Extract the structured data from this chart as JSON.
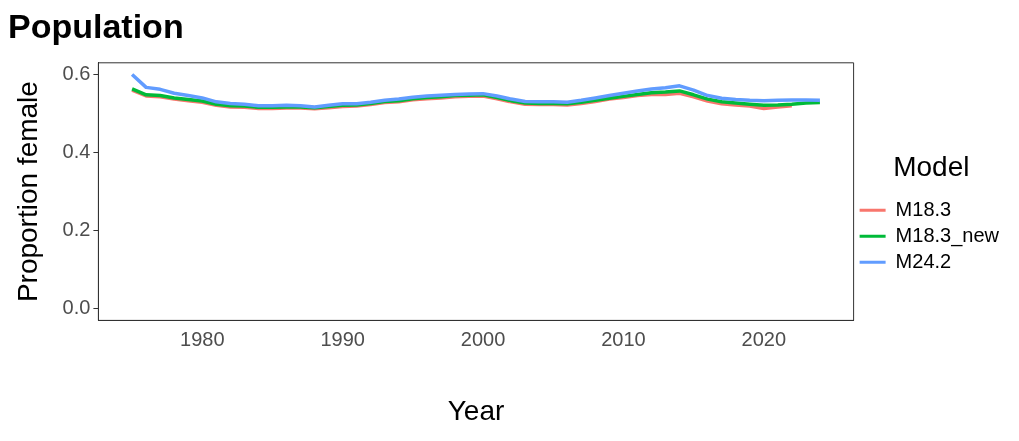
{
  "chart_data": {
    "type": "line",
    "title": "Population",
    "xlabel": "Year",
    "ylabel": "Proportion female",
    "legend_title": "Model",
    "legend": "right",
    "grid": false,
    "marker": "none",
    "line_style": "solid",
    "xlim": [
      1972.6,
      2026.4
    ],
    "xticks": [
      1980,
      1990,
      2000,
      2010,
      2020
    ],
    "ylim": [
      -0.03,
      0.63
    ],
    "yticks": [
      {
        "value": 0,
        "label": "0.0"
      },
      {
        "value": 0.2,
        "label": "0.2"
      },
      {
        "value": 0.4,
        "label": "0.4"
      },
      {
        "value": 0.6,
        "label": "0.6"
      }
    ],
    "series": [
      {
        "name": "M18.3",
        "color": "#f8766d",
        "x": [
          1975,
          1976,
          1977,
          1978,
          1979,
          1980,
          1981,
          1982,
          1983,
          1984,
          1985,
          1986,
          1987,
          1988,
          1989,
          1990,
          1991,
          1992,
          1993,
          1994,
          1995,
          1996,
          1997,
          1998,
          1999,
          2000,
          2001,
          2002,
          2003,
          2004,
          2005,
          2006,
          2007,
          2008,
          2009,
          2010,
          2011,
          2012,
          2013,
          2014,
          2015,
          2016,
          2017,
          2018,
          2019,
          2020,
          2021,
          2022
        ],
        "values": [
          0.56,
          0.545,
          0.543,
          0.537,
          0.533,
          0.529,
          0.521,
          0.517,
          0.516,
          0.513,
          0.513,
          0.514,
          0.514,
          0.512,
          0.515,
          0.518,
          0.519,
          0.523,
          0.528,
          0.53,
          0.535,
          0.538,
          0.54,
          0.543,
          0.544,
          0.545,
          0.538,
          0.53,
          0.524,
          0.523,
          0.523,
          0.522,
          0.526,
          0.531,
          0.537,
          0.541,
          0.546,
          0.549,
          0.549,
          0.552,
          0.543,
          0.532,
          0.525,
          0.522,
          0.519,
          0.513,
          0.517,
          0.52
        ]
      },
      {
        "name": "M18.3_new",
        "color": "#00ba38",
        "x": [
          1975,
          1976,
          1977,
          1978,
          1979,
          1980,
          1981,
          1982,
          1983,
          1984,
          1985,
          1986,
          1987,
          1988,
          1989,
          1990,
          1991,
          1992,
          1993,
          1994,
          1995,
          1996,
          1997,
          1998,
          1999,
          2000,
          2001,
          2002,
          2003,
          2004,
          2005,
          2006,
          2007,
          2008,
          2009,
          2010,
          2011,
          2012,
          2013,
          2014,
          2015,
          2016,
          2017,
          2018,
          2019,
          2020,
          2021,
          2022,
          2023,
          2024
        ],
        "values": [
          0.563,
          0.548,
          0.546,
          0.54,
          0.536,
          0.532,
          0.524,
          0.52,
          0.519,
          0.516,
          0.516,
          0.517,
          0.517,
          0.515,
          0.518,
          0.521,
          0.522,
          0.526,
          0.531,
          0.533,
          0.538,
          0.541,
          0.543,
          0.546,
          0.547,
          0.548,
          0.541,
          0.533,
          0.527,
          0.526,
          0.526,
          0.525,
          0.529,
          0.534,
          0.539,
          0.544,
          0.549,
          0.553,
          0.555,
          0.558,
          0.548,
          0.537,
          0.53,
          0.527,
          0.524,
          0.521,
          0.522,
          0.524,
          0.527,
          0.528
        ]
      },
      {
        "name": "M24.2",
        "color": "#619cff",
        "x": [
          1975,
          1976,
          1977,
          1978,
          1979,
          1980,
          1981,
          1982,
          1983,
          1984,
          1985,
          1986,
          1987,
          1988,
          1989,
          1990,
          1991,
          1992,
          1993,
          1994,
          1995,
          1996,
          1997,
          1998,
          1999,
          2000,
          2001,
          2002,
          2003,
          2004,
          2005,
          2006,
          2007,
          2008,
          2009,
          2010,
          2011,
          2012,
          2013,
          2014,
          2015,
          2016,
          2017,
          2018,
          2019,
          2020,
          2021,
          2022,
          2023,
          2024
        ],
        "values": [
          0.6,
          0.567,
          0.562,
          0.552,
          0.546,
          0.54,
          0.53,
          0.526,
          0.524,
          0.52,
          0.52,
          0.521,
          0.52,
          0.517,
          0.521,
          0.525,
          0.525,
          0.529,
          0.534,
          0.537,
          0.542,
          0.545,
          0.547,
          0.549,
          0.55,
          0.551,
          0.545,
          0.537,
          0.531,
          0.53,
          0.53,
          0.529,
          0.534,
          0.54,
          0.546,
          0.552,
          0.558,
          0.563,
          0.566,
          0.571,
          0.56,
          0.546,
          0.539,
          0.536,
          0.534,
          0.533,
          0.534,
          0.535,
          0.535,
          0.534
        ]
      }
    ]
  }
}
